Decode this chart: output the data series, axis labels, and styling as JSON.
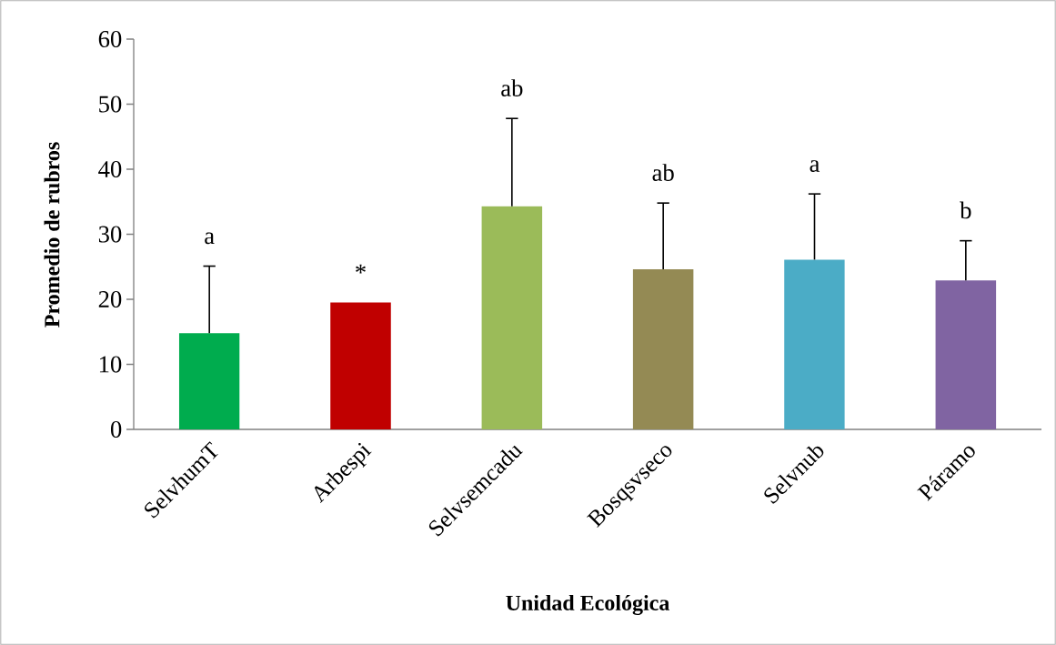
{
  "chart_data": {
    "type": "bar",
    "xlabel": "Unidad Ecológica",
    "ylabel": "Promedio de rubros",
    "categories": [
      "SelvhumT",
      "Arbespi",
      "Selvsemcadu",
      "Bosqsvseco",
      "Selvnub",
      "Páramo"
    ],
    "values": [
      14.8,
      19.5,
      34.3,
      24.6,
      26.1,
      22.9
    ],
    "colors": [
      "#00ac4e",
      "#c00000",
      "#9bbb59",
      "#948a54",
      "#4bacc6",
      "#8064a2"
    ],
    "errors": [
      [
        14.8,
        25.1
      ],
      null,
      [
        34.3,
        47.8
      ],
      [
        24.6,
        34.8
      ],
      [
        26.1,
        36.2
      ],
      [
        22.9,
        29.0
      ]
    ],
    "ylim": [
      0,
      60
    ],
    "yticks": [
      0,
      10,
      20,
      30,
      40,
      50,
      60
    ],
    "annotations": [
      "a",
      "*",
      "ab",
      "ab",
      "a",
      "b"
    ]
  }
}
